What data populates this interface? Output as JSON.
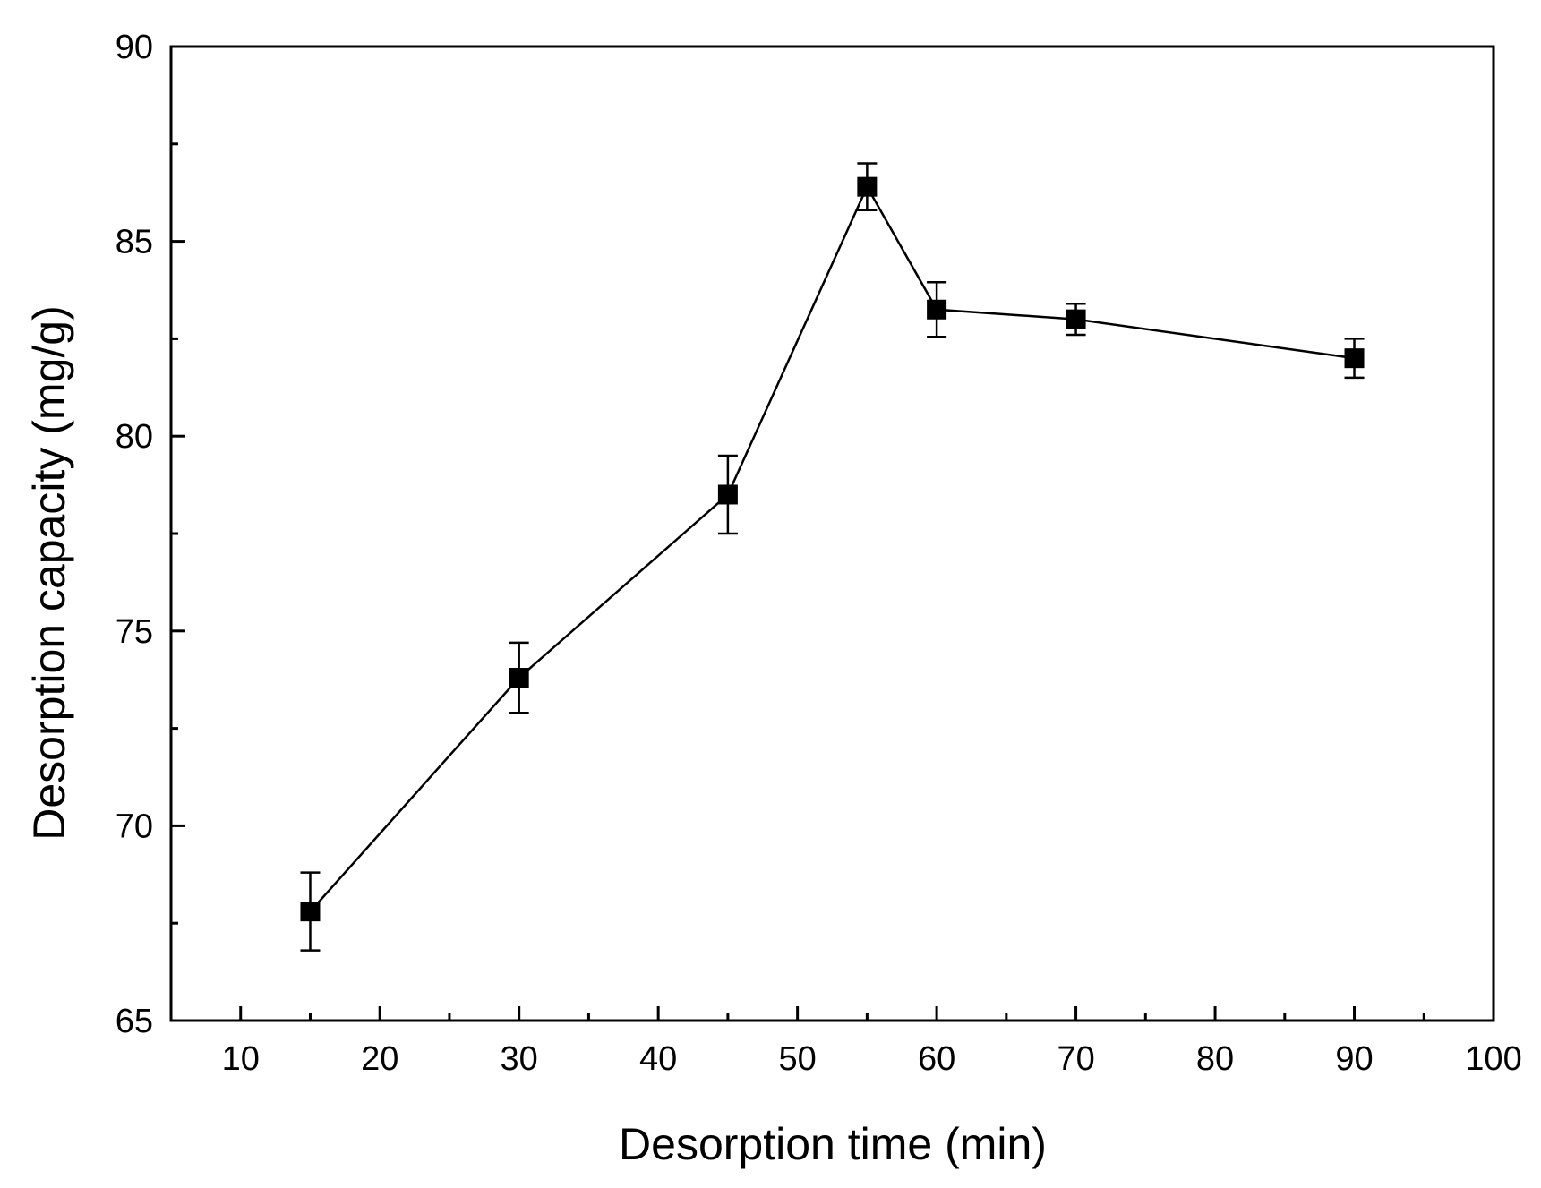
{
  "chart_data": {
    "type": "line",
    "title": "",
    "xlabel": "Desorption time (min)",
    "ylabel": "Desorption capacity (mg/g)",
    "xlim": [
      5,
      100
    ],
    "ylim": [
      65,
      90
    ],
    "xticks": [
      10,
      20,
      30,
      40,
      50,
      60,
      70,
      80,
      90,
      100
    ],
    "xticks_minor": [
      15,
      25,
      35,
      45,
      55,
      65,
      75,
      85,
      95
    ],
    "yticks": [
      65,
      70,
      75,
      80,
      85,
      90
    ],
    "yticks_minor": [
      67.5,
      72.5,
      77.5,
      82.5,
      87.5
    ],
    "grid": false,
    "legend": "none",
    "series": [
      {
        "name": "Desorption capacity",
        "marker": "square",
        "color": "#000000",
        "x": [
          15,
          30,
          45,
          55,
          60,
          70,
          90
        ],
        "y": [
          67.8,
          73.8,
          78.5,
          86.4,
          83.25,
          83.0,
          82.0
        ],
        "error": [
          1.0,
          0.9,
          1.0,
          0.6,
          0.7,
          0.4,
          0.5
        ]
      }
    ]
  }
}
